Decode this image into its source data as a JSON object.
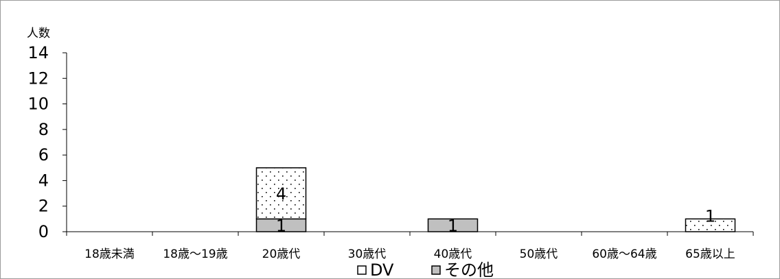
{
  "chart_data": {
    "type": "bar",
    "stacked": true,
    "ylabel": "人数",
    "ylim": [
      0,
      14
    ],
    "yticks": [
      "0",
      "2",
      "4",
      "6",
      "8",
      "10",
      "12",
      "14"
    ],
    "categories": [
      "18歳未満",
      "18歳～19歳",
      "20歳代",
      "30歳代",
      "40歳代",
      "50歳代",
      "60歳～64歳",
      "65歳以上"
    ],
    "series": [
      {
        "name": "その他",
        "values": [
          0,
          0,
          1,
          0,
          1,
          0,
          0,
          0
        ],
        "labels": [
          "",
          "",
          "1",
          "",
          "1",
          "",
          "",
          ""
        ],
        "color": "#c0c0c0",
        "fill": "solid"
      },
      {
        "name": "DV",
        "values": [
          0,
          0,
          4,
          0,
          0,
          0,
          0,
          1
        ],
        "labels": [
          "",
          "",
          "4",
          "",
          "",
          "",
          "",
          "1"
        ],
        "color": "#ffffff",
        "fill": "dotted"
      }
    ],
    "grid": false,
    "legend_position": "bottom"
  }
}
